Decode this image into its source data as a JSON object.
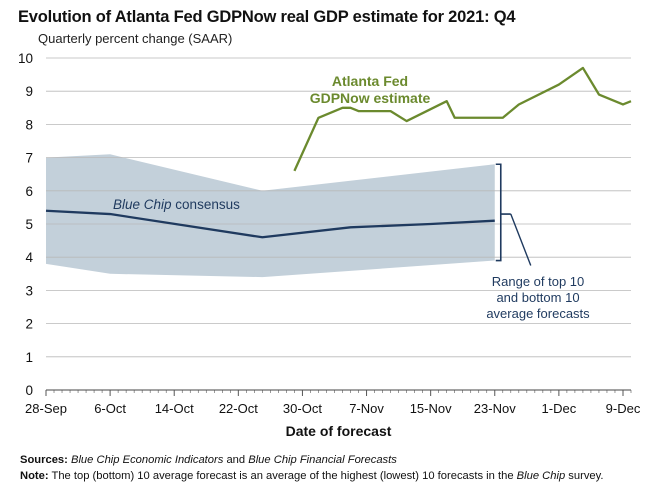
{
  "title": "Evolution of Atlanta Fed GDPNow real GDP estimate for 2021: Q4",
  "subtitle": "Quarterly percent change (SAAR)",
  "colors": {
    "gdpnow": "#6b8a2e",
    "bluechip": "#1f3a5f",
    "band": "#c3d0da",
    "grid": "#b9b9b9"
  },
  "chart_data": {
    "type": "line",
    "xlabel": "Date of forecast",
    "ylabel": "",
    "ylim": [
      0,
      10
    ],
    "yticks": [
      "0",
      "1",
      "2",
      "3",
      "4",
      "5",
      "6",
      "7",
      "8",
      "9",
      "10"
    ],
    "x_tick_labels": [
      "28-Sep",
      "6-Oct",
      "14-Oct",
      "22-Oct",
      "30-Oct",
      "7-Nov",
      "15-Nov",
      "23-Nov",
      "1-Dec",
      "9-Dec"
    ],
    "x_domain": [
      "2021-09-28",
      "2021-12-10"
    ],
    "grid": true,
    "series": [
      {
        "name": "Atlanta Fed GDPNow estimate",
        "color": "#6b8a2e",
        "points": [
          [
            "2021-10-29",
            6.6
          ],
          [
            "2021-11-01",
            8.2
          ],
          [
            "2021-11-04",
            8.5
          ],
          [
            "2021-11-05",
            8.5
          ],
          [
            "2021-11-06",
            8.4
          ],
          [
            "2021-11-10",
            8.4
          ],
          [
            "2021-11-12",
            8.1
          ],
          [
            "2021-11-17",
            8.7
          ],
          [
            "2021-11-18",
            8.2
          ],
          [
            "2021-11-22",
            8.2
          ],
          [
            "2021-11-24",
            8.2
          ],
          [
            "2021-11-26",
            8.6
          ],
          [
            "2021-12-01",
            9.2
          ],
          [
            "2021-12-04",
            9.7
          ],
          [
            "2021-12-06",
            8.9
          ],
          [
            "2021-12-09",
            8.6
          ],
          [
            "2021-12-10",
            8.7
          ]
        ]
      },
      {
        "name": "Blue Chip consensus",
        "color": "#1f3a5f",
        "points": [
          [
            "2021-09-28",
            5.4
          ],
          [
            "2021-10-06",
            5.3
          ],
          [
            "2021-10-25",
            4.6
          ],
          [
            "2021-11-05",
            4.9
          ],
          [
            "2021-11-15",
            5.0
          ],
          [
            "2021-11-23",
            5.1
          ]
        ]
      }
    ],
    "band": {
      "name": "Range of top 10 and bottom 10 average forecasts",
      "upper": [
        [
          "2021-09-28",
          7.0
        ],
        [
          "2021-10-06",
          7.1
        ],
        [
          "2021-10-25",
          6.0
        ],
        [
          "2021-11-23",
          6.8
        ]
      ],
      "lower": [
        [
          "2021-09-28",
          3.8
        ],
        [
          "2021-10-06",
          3.5
        ],
        [
          "2021-10-25",
          3.4
        ],
        [
          "2021-11-23",
          3.9
        ]
      ]
    },
    "annotations": {
      "gdpnow_line1": "Atlanta Fed",
      "gdpnow_line2": "GDPNow estimate",
      "bluechip_italic": "Blue Chip",
      "bluechip_rest": " consensus",
      "range_line1": "Range of top 10",
      "range_line2": "and bottom 10",
      "range_line3": "average forecasts"
    }
  },
  "footnotes": {
    "sources_label": "Sources:",
    "sources_text_1": "Blue Chip Economic Indicators",
    "sources_and": " and ",
    "sources_text_2": "Blue Chip Financial Forecasts",
    "note_label": "Note:",
    "note_text_1": " The top (bottom) 10 average forecast is an average of the highest (lowest) 10 forecasts in the ",
    "note_italic": "Blue Chip",
    "note_text_2": " survey."
  }
}
